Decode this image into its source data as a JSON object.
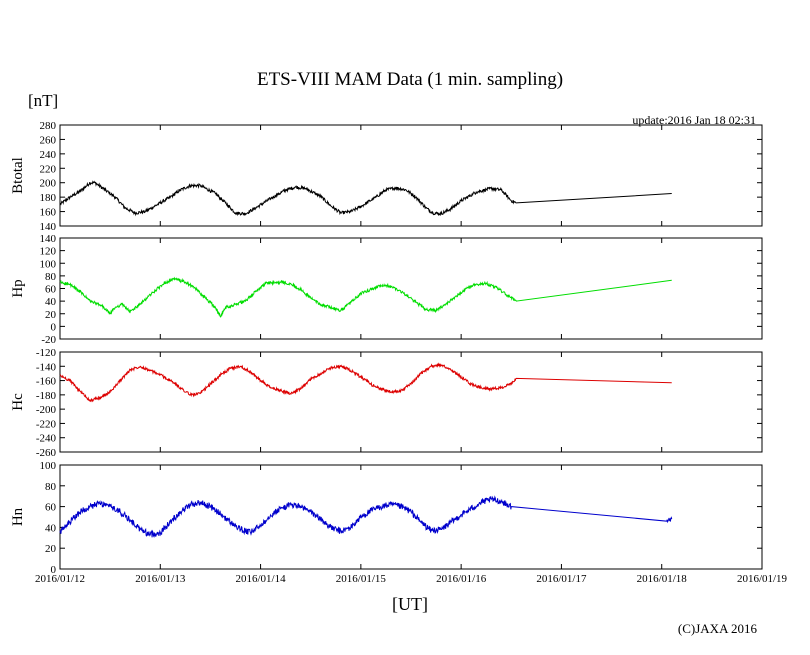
{
  "chart_data": {
    "type": "line",
    "title": "ETS-VIII MAM Data (1 min. sampling)",
    "unit_label": "[nT]",
    "update_text": "update:2016 Jan 18 02:31",
    "xlabel": "[UT]",
    "copyright": "(C)JAXA 2016",
    "x_ticks": [
      "2016/01/12",
      "2016/01/13",
      "2016/01/14",
      "2016/01/15",
      "2016/01/16",
      "2016/01/17",
      "2016/01/18",
      "2016/01/19"
    ],
    "x_range_days": [
      0,
      7
    ],
    "panels": [
      {
        "name": "Btotal",
        "color": "#000000",
        "ylim": [
          140,
          280
        ],
        "ystep": 20,
        "noise": 2.2,
        "points": [
          [
            0,
            170
          ],
          [
            0.1,
            180
          ],
          [
            0.2,
            188
          ],
          [
            0.3,
            200
          ],
          [
            0.35,
            200
          ],
          [
            0.45,
            190
          ],
          [
            0.55,
            180
          ],
          [
            0.65,
            165
          ],
          [
            0.75,
            158
          ],
          [
            0.85,
            160
          ],
          [
            0.95,
            168
          ],
          [
            1.1,
            180
          ],
          [
            1.2,
            190
          ],
          [
            1.3,
            196
          ],
          [
            1.4,
            196
          ],
          [
            1.55,
            185
          ],
          [
            1.65,
            172
          ],
          [
            1.75,
            158
          ],
          [
            1.85,
            157
          ],
          [
            1.95,
            165
          ],
          [
            2.1,
            178
          ],
          [
            2.25,
            190
          ],
          [
            2.35,
            194
          ],
          [
            2.45,
            192
          ],
          [
            2.6,
            181
          ],
          [
            2.7,
            168
          ],
          [
            2.8,
            158
          ],
          [
            2.9,
            160
          ],
          [
            3.0,
            167
          ],
          [
            3.15,
            180
          ],
          [
            3.25,
            190
          ],
          [
            3.35,
            193
          ],
          [
            3.45,
            190
          ],
          [
            3.55,
            180
          ],
          [
            3.65,
            165
          ],
          [
            3.72,
            158
          ],
          [
            3.8,
            157
          ],
          [
            3.9,
            164
          ],
          [
            4.0,
            175
          ],
          [
            4.15,
            187
          ],
          [
            4.3,
            192
          ],
          [
            4.4,
            190
          ],
          [
            4.5,
            175
          ],
          [
            4.55,
            172
          ],
          [
            6.1,
            185
          ]
        ]
      },
      {
        "name": "Hp",
        "color": "#00dd00",
        "ylim": [
          -20,
          140
        ],
        "ystep": 20,
        "noise": 2.4,
        "points": [
          [
            0,
            70
          ],
          [
            0.1,
            66
          ],
          [
            0.2,
            55
          ],
          [
            0.3,
            40
          ],
          [
            0.42,
            32
          ],
          [
            0.5,
            20
          ],
          [
            0.55,
            30
          ],
          [
            0.62,
            35
          ],
          [
            0.7,
            23
          ],
          [
            0.8,
            35
          ],
          [
            0.9,
            50
          ],
          [
            1.05,
            70
          ],
          [
            1.15,
            75
          ],
          [
            1.25,
            70
          ],
          [
            1.35,
            60
          ],
          [
            1.45,
            45
          ],
          [
            1.55,
            30
          ],
          [
            1.6,
            15
          ],
          [
            1.65,
            30
          ],
          [
            1.75,
            35
          ],
          [
            1.85,
            40
          ],
          [
            1.95,
            55
          ],
          [
            2.05,
            68
          ],
          [
            2.2,
            70
          ],
          [
            2.3,
            68
          ],
          [
            2.4,
            58
          ],
          [
            2.5,
            45
          ],
          [
            2.6,
            35
          ],
          [
            2.7,
            30
          ],
          [
            2.8,
            25
          ],
          [
            2.9,
            38
          ],
          [
            3.0,
            52
          ],
          [
            3.15,
            62
          ],
          [
            3.25,
            65
          ],
          [
            3.35,
            60
          ],
          [
            3.45,
            50
          ],
          [
            3.55,
            38
          ],
          [
            3.65,
            27
          ],
          [
            3.75,
            25
          ],
          [
            3.85,
            35
          ],
          [
            3.95,
            48
          ],
          [
            4.05,
            60
          ],
          [
            4.15,
            67
          ],
          [
            4.25,
            68
          ],
          [
            4.35,
            62
          ],
          [
            4.45,
            50
          ],
          [
            4.55,
            40
          ],
          [
            6.1,
            73
          ]
        ]
      },
      {
        "name": "Hc",
        "color": "#dd0000",
        "ylim": [
          -260,
          -120
        ],
        "ystep": 20,
        "noise": 2.0,
        "points": [
          [
            0,
            -153
          ],
          [
            0.1,
            -160
          ],
          [
            0.2,
            -175
          ],
          [
            0.3,
            -188
          ],
          [
            0.4,
            -184
          ],
          [
            0.5,
            -176
          ],
          [
            0.6,
            -160
          ],
          [
            0.7,
            -145
          ],
          [
            0.8,
            -140
          ],
          [
            0.9,
            -146
          ],
          [
            1.0,
            -152
          ],
          [
            1.1,
            -160
          ],
          [
            1.2,
            -170
          ],
          [
            1.3,
            -180
          ],
          [
            1.4,
            -178
          ],
          [
            1.5,
            -165
          ],
          [
            1.6,
            -152
          ],
          [
            1.7,
            -143
          ],
          [
            1.8,
            -140
          ],
          [
            1.9,
            -148
          ],
          [
            2.0,
            -160
          ],
          [
            2.1,
            -170
          ],
          [
            2.2,
            -174
          ],
          [
            2.3,
            -178
          ],
          [
            2.4,
            -172
          ],
          [
            2.5,
            -158
          ],
          [
            2.6,
            -150
          ],
          [
            2.7,
            -142
          ],
          [
            2.8,
            -140
          ],
          [
            2.9,
            -146
          ],
          [
            3.0,
            -155
          ],
          [
            3.1,
            -165
          ],
          [
            3.2,
            -172
          ],
          [
            3.3,
            -176
          ],
          [
            3.4,
            -174
          ],
          [
            3.5,
            -165
          ],
          [
            3.6,
            -150
          ],
          [
            3.7,
            -140
          ],
          [
            3.8,
            -138
          ],
          [
            3.9,
            -145
          ],
          [
            4.0,
            -155
          ],
          [
            4.1,
            -165
          ],
          [
            4.2,
            -170
          ],
          [
            4.3,
            -172
          ],
          [
            4.4,
            -170
          ],
          [
            4.5,
            -165
          ],
          [
            4.55,
            -157
          ],
          [
            6.1,
            -163
          ]
        ]
      },
      {
        "name": "Hn",
        "color": "#0000cc",
        "ylim": [
          0,
          100
        ],
        "ystep": 20,
        "noise": 3.0,
        "points": [
          [
            0,
            35
          ],
          [
            0.1,
            45
          ],
          [
            0.2,
            55
          ],
          [
            0.3,
            60
          ],
          [
            0.4,
            63
          ],
          [
            0.5,
            60
          ],
          [
            0.6,
            55
          ],
          [
            0.7,
            47
          ],
          [
            0.8,
            38
          ],
          [
            0.9,
            33
          ],
          [
            1.0,
            35
          ],
          [
            1.1,
            45
          ],
          [
            1.2,
            55
          ],
          [
            1.3,
            62
          ],
          [
            1.4,
            64
          ],
          [
            1.5,
            60
          ],
          [
            1.6,
            53
          ],
          [
            1.7,
            45
          ],
          [
            1.8,
            38
          ],
          [
            1.9,
            35
          ],
          [
            2.0,
            42
          ],
          [
            2.1,
            52
          ],
          [
            2.2,
            58
          ],
          [
            2.3,
            62
          ],
          [
            2.4,
            60
          ],
          [
            2.5,
            55
          ],
          [
            2.6,
            48
          ],
          [
            2.7,
            40
          ],
          [
            2.8,
            36
          ],
          [
            2.9,
            40
          ],
          [
            3.0,
            50
          ],
          [
            3.1,
            56
          ],
          [
            3.2,
            60
          ],
          [
            3.3,
            62
          ],
          [
            3.4,
            60
          ],
          [
            3.5,
            55
          ],
          [
            3.6,
            45
          ],
          [
            3.7,
            37
          ],
          [
            3.8,
            38
          ],
          [
            3.9,
            45
          ],
          [
            4.0,
            52
          ],
          [
            4.1,
            58
          ],
          [
            4.2,
            64
          ],
          [
            4.3,
            67
          ],
          [
            4.4,
            65
          ],
          [
            4.5,
            60
          ],
          [
            6.05,
            46
          ],
          [
            6.1,
            48
          ]
        ]
      }
    ]
  }
}
